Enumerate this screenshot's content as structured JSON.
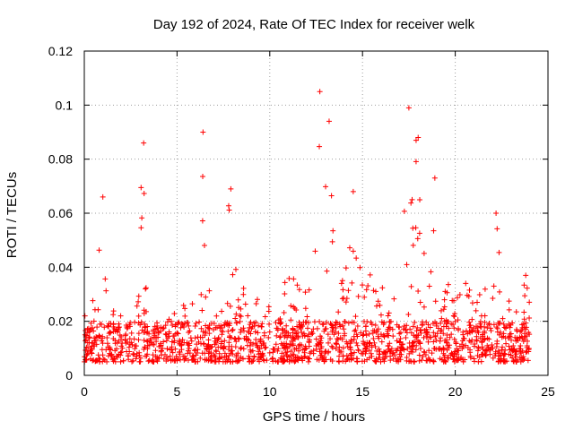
{
  "chart_data": {
    "type": "scatter",
    "title": "Day 192 of 2024, Rate Of TEC Index for receiver welk",
    "xlabel": "GPS time / hours",
    "ylabel": "ROTI / TECUs",
    "xlim": [
      0,
      25
    ],
    "ylim": [
      0,
      0.12
    ],
    "x_ticks": [
      0,
      5,
      10,
      15,
      20,
      25
    ],
    "x_tick_labels": [
      "0",
      "5",
      "10",
      "15",
      "20",
      "25"
    ],
    "y_ticks": [
      0,
      0.02,
      0.04,
      0.06,
      0.08,
      0.1,
      0.12
    ],
    "y_tick_labels": [
      "0",
      "0.02",
      "0.04",
      "0.06",
      "0.08",
      "0.1",
      "0.12"
    ],
    "grid": true,
    "marker": "+",
    "marker_color": "#ff0000",
    "x_data_range": [
      0,
      24
    ],
    "baseline_range": [
      0.005,
      0.02
    ],
    "notable_peaks": [
      {
        "x": 1.0,
        "y": 0.066
      },
      {
        "x": 3.2,
        "y": 0.086
      },
      {
        "x": 6.4,
        "y": 0.09
      },
      {
        "x": 7.9,
        "y": 0.069
      },
      {
        "x": 12.7,
        "y": 0.105
      },
      {
        "x": 13.2,
        "y": 0.094
      },
      {
        "x": 14.5,
        "y": 0.068
      },
      {
        "x": 17.5,
        "y": 0.099
      },
      {
        "x": 18.0,
        "y": 0.088
      },
      {
        "x": 18.9,
        "y": 0.073
      },
      {
        "x": 22.2,
        "y": 0.06
      },
      {
        "x": 23.8,
        "y": 0.037
      }
    ]
  }
}
